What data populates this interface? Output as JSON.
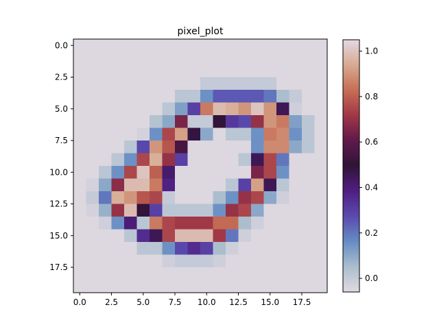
{
  "chart_data": {
    "type": "heatmap",
    "title": "pixel_plot",
    "xlabel": "",
    "ylabel": "",
    "colormap": "twilight",
    "origin": "upper",
    "xlim": [
      -0.5,
      19.5
    ],
    "ylim": [
      19.5,
      -0.5
    ],
    "clim": [
      -0.06,
      1.05
    ],
    "x_ticks": [
      0.0,
      2.5,
      5.0,
      7.5,
      10.0,
      12.5,
      15.0,
      17.5
    ],
    "x_tick_labels": [
      "0.0",
      "2.5",
      "5.0",
      "7.5",
      "10.0",
      "12.5",
      "15.0",
      "17.5"
    ],
    "y_ticks": [
      0.0,
      2.5,
      5.0,
      7.5,
      10.0,
      12.5,
      15.0,
      17.5
    ],
    "y_tick_labels": [
      "0.0",
      "2.5",
      "5.0",
      "7.5",
      "10.0",
      "12.5",
      "15.0",
      "17.5"
    ],
    "colorbar_ticks": [
      0.0,
      0.2,
      0.4,
      0.6,
      0.8,
      1.0
    ],
    "colorbar_tick_labels": [
      "0.0",
      "0.2",
      "0.4",
      "0.6",
      "0.8",
      "1.0"
    ],
    "values": [
      [
        -0.05,
        -0.05,
        -0.05,
        -0.05,
        -0.05,
        -0.05,
        -0.05,
        -0.05,
        -0.05,
        -0.05,
        -0.05,
        -0.05,
        -0.05,
        -0.05,
        -0.05,
        -0.05,
        -0.05,
        -0.05,
        -0.05,
        -0.05
      ],
      [
        -0.05,
        -0.05,
        -0.05,
        -0.05,
        -0.05,
        -0.05,
        -0.05,
        -0.05,
        -0.05,
        -0.05,
        -0.05,
        -0.05,
        -0.05,
        -0.05,
        -0.05,
        -0.05,
        -0.05,
        -0.05,
        -0.05,
        -0.05
      ],
      [
        -0.05,
        -0.05,
        -0.05,
        -0.05,
        -0.05,
        -0.05,
        -0.05,
        -0.05,
        -0.05,
        -0.05,
        -0.05,
        -0.05,
        -0.05,
        -0.05,
        -0.05,
        -0.05,
        -0.05,
        -0.05,
        -0.05,
        -0.05
      ],
      [
        -0.05,
        -0.05,
        -0.05,
        -0.05,
        -0.05,
        -0.05,
        -0.05,
        -0.05,
        -0.05,
        -0.05,
        0.0,
        0.0,
        0.0,
        0.0,
        0.0,
        0.0,
        -0.05,
        -0.05,
        -0.05,
        -0.05
      ],
      [
        -0.05,
        -0.05,
        -0.05,
        -0.05,
        -0.05,
        -0.05,
        -0.05,
        -0.05,
        0.02,
        0.02,
        0.15,
        0.25,
        0.25,
        0.25,
        0.25,
        0.2,
        0.05,
        0.0,
        -0.05,
        -0.05
      ],
      [
        -0.05,
        -0.05,
        -0.05,
        -0.05,
        -0.05,
        -0.05,
        -0.05,
        0.02,
        0.12,
        0.3,
        0.85,
        0.98,
        0.95,
        0.9,
        1.0,
        0.9,
        0.45,
        -0.02,
        -0.05,
        -0.05
      ],
      [
        -0.05,
        -0.05,
        -0.05,
        -0.05,
        -0.05,
        -0.05,
        0.03,
        0.1,
        0.65,
        0.0,
        0.0,
        0.5,
        0.32,
        0.28,
        0.7,
        0.9,
        0.85,
        0.12,
        0.02,
        -0.05
      ],
      [
        -0.05,
        -0.05,
        -0.05,
        -0.05,
        -0.05,
        -0.03,
        0.15,
        0.75,
        0.92,
        0.48,
        0.1,
        -0.05,
        0.02,
        0.02,
        0.15,
        0.85,
        0.88,
        0.15,
        0.02,
        -0.05
      ],
      [
        -0.05,
        -0.05,
        -0.05,
        -0.05,
        0.02,
        0.28,
        0.9,
        0.78,
        0.55,
        -0.05,
        -0.05,
        -0.05,
        -0.05,
        -0.05,
        0.15,
        0.88,
        0.88,
        0.1,
        0.02,
        -0.05
      ],
      [
        -0.05,
        -0.05,
        -0.05,
        0.02,
        0.15,
        0.75,
        0.95,
        0.7,
        0.3,
        -0.05,
        -0.05,
        -0.05,
        -0.05,
        0.02,
        0.45,
        0.75,
        0.2,
        -0.05,
        -0.05,
        -0.05
      ],
      [
        -0.05,
        -0.05,
        0.02,
        0.15,
        0.75,
        1.0,
        0.8,
        0.42,
        -0.05,
        -0.05,
        -0.05,
        -0.05,
        -0.05,
        -0.05,
        0.65,
        0.75,
        0.15,
        -0.05,
        -0.05,
        -0.05
      ],
      [
        -0.05,
        -0.03,
        0.1,
        0.68,
        0.98,
        0.98,
        0.85,
        0.38,
        -0.05,
        -0.05,
        -0.05,
        -0.05,
        0.02,
        0.3,
        0.92,
        0.45,
        0.02,
        -0.05,
        -0.05,
        -0.05
      ],
      [
        -0.05,
        0.0,
        0.2,
        0.95,
        0.9,
        0.78,
        0.75,
        0.0,
        -0.05,
        -0.05,
        -0.05,
        0.05,
        0.15,
        0.7,
        0.75,
        0.1,
        -0.02,
        -0.05,
        -0.05,
        -0.05
      ],
      [
        -0.05,
        -0.03,
        0.08,
        0.7,
        0.98,
        0.5,
        0.3,
        0.02,
        0.02,
        0.02,
        0.02,
        0.15,
        0.7,
        0.75,
        0.1,
        -0.05,
        -0.05,
        -0.05,
        -0.05,
        -0.05
      ],
      [
        -0.05,
        -0.05,
        -0.02,
        0.15,
        0.4,
        0.02,
        0.85,
        0.75,
        0.72,
        0.72,
        0.72,
        0.82,
        0.82,
        0.05,
        -0.02,
        -0.05,
        -0.05,
        -0.05,
        -0.05,
        -0.05
      ],
      [
        -0.05,
        -0.05,
        -0.05,
        -0.05,
        0.02,
        0.35,
        0.45,
        0.75,
        0.98,
        0.98,
        0.98,
        0.72,
        0.2,
        -0.02,
        -0.05,
        -0.05,
        -0.05,
        -0.05,
        -0.05,
        -0.05
      ],
      [
        -0.05,
        -0.05,
        -0.05,
        -0.05,
        -0.05,
        0.02,
        0.02,
        0.15,
        0.28,
        0.35,
        0.3,
        0.05,
        -0.02,
        -0.05,
        -0.05,
        -0.05,
        -0.05,
        -0.05,
        -0.05,
        -0.05
      ],
      [
        -0.05,
        -0.05,
        -0.05,
        -0.05,
        -0.05,
        -0.05,
        -0.05,
        -0.02,
        0.0,
        0.0,
        0.0,
        -0.02,
        -0.05,
        -0.05,
        -0.05,
        -0.05,
        -0.05,
        -0.05,
        -0.05,
        -0.05
      ],
      [
        -0.05,
        -0.05,
        -0.05,
        -0.05,
        -0.05,
        -0.05,
        -0.05,
        -0.05,
        -0.05,
        -0.05,
        -0.05,
        -0.05,
        -0.05,
        -0.05,
        -0.05,
        -0.05,
        -0.05,
        -0.05,
        -0.05,
        -0.05
      ],
      [
        -0.05,
        -0.05,
        -0.05,
        -0.05,
        -0.05,
        -0.05,
        -0.05,
        -0.05,
        -0.05,
        -0.05,
        -0.05,
        -0.05,
        -0.05,
        -0.05,
        -0.05,
        -0.05,
        -0.05,
        -0.05,
        -0.05,
        -0.05
      ]
    ]
  }
}
